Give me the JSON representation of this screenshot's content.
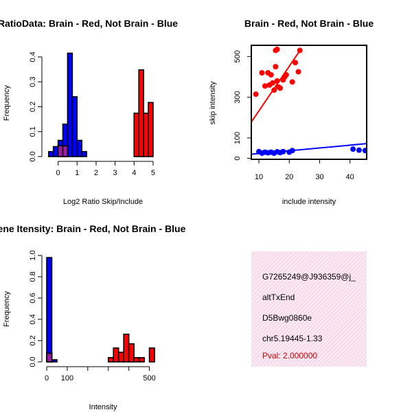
{
  "colors": {
    "brain": "#ff0000",
    "not_brain": "#0000ff",
    "overlap": "#9b1fa0",
    "panel": "#f7dcec"
  },
  "chart_data": [
    {
      "id": "ratio_hist",
      "type": "bar",
      "title": "RatioData: Brain - Red, Not Brain - Blue",
      "xlabel": "Log2 Ratio Skip/Include",
      "ylabel": "Frequency",
      "xlim": [
        -0.6,
        5.4
      ],
      "ylim": [
        0,
        0.43
      ],
      "xticks": [
        0,
        1,
        2,
        3,
        4,
        5
      ],
      "yticks": [
        0.0,
        0.1,
        0.2,
        0.3,
        0.4
      ],
      "series": [
        {
          "name": "Not Brain",
          "color": "blue",
          "bin_width": 0.25,
          "bins": [
            [
              -0.5,
              0.02
            ],
            [
              -0.25,
              0.04
            ],
            [
              0.0,
              0.065
            ],
            [
              0.25,
              0.13
            ],
            [
              0.5,
              0.415
            ],
            [
              0.75,
              0.24
            ],
            [
              1.0,
              0.065
            ],
            [
              1.25,
              0.02
            ]
          ]
        },
        {
          "name": "Brain",
          "color": "red",
          "bin_width": 0.25,
          "bins": [
            [
              0.0,
              0.043
            ],
            [
              0.25,
              0.043
            ],
            [
              4.0,
              0.174
            ],
            [
              4.25,
              0.348
            ],
            [
              4.5,
              0.174
            ],
            [
              4.75,
              0.217
            ]
          ]
        }
      ]
    },
    {
      "id": "scatter",
      "type": "scatter",
      "title": "Brain - Red, Not Brain - Blue",
      "xlabel": "include intensity",
      "ylabel": "skip intensity",
      "xlim": [
        7.5,
        45.5
      ],
      "ylim": [
        -5,
        555
      ],
      "xticks": [
        10,
        20,
        30,
        40
      ],
      "yticks": [
        0,
        100,
        300,
        500
      ],
      "series": [
        {
          "name": "Brain",
          "color": "red",
          "points": [
            [
              9,
              315
            ],
            [
              11,
              420
            ],
            [
              12,
              355
            ],
            [
              13,
              420
            ],
            [
              13.5,
              360
            ],
            [
              14,
              410
            ],
            [
              14.5,
              370
            ],
            [
              15,
              335
            ],
            [
              15.5,
              530
            ],
            [
              16,
              535
            ],
            [
              15.5,
              450
            ],
            [
              16,
              380
            ],
            [
              16.5,
              350
            ],
            [
              17,
              345
            ],
            [
              18,
              385
            ],
            [
              18.5,
              400
            ],
            [
              19,
              410
            ],
            [
              21,
              375
            ],
            [
              22,
              470
            ],
            [
              23,
              425
            ],
            [
              23.5,
              530
            ]
          ],
          "fit": [
            [
              7.5,
              178
            ],
            [
              24,
              540
            ]
          ]
        },
        {
          "name": "Not Brain",
          "color": "blue",
          "points": [
            [
              10,
              33
            ],
            [
              11,
              25
            ],
            [
              12,
              30
            ],
            [
              13,
              27
            ],
            [
              14,
              30
            ],
            [
              15,
              25
            ],
            [
              16,
              32
            ],
            [
              17,
              28
            ],
            [
              18,
              33
            ],
            [
              20,
              30
            ],
            [
              21,
              38
            ],
            [
              41,
              45
            ],
            [
              43,
              40
            ],
            [
              45,
              38
            ]
          ],
          "fit": [
            [
              7.5,
              20
            ],
            [
              45.5,
              72
            ]
          ]
        }
      ]
    },
    {
      "id": "intensity_hist",
      "type": "bar",
      "title": "Gene Itensity: Brain - Red, Not Brain - Blue",
      "xlabel": "Intensity",
      "ylabel": "Frequency",
      "xlim": [
        0,
        555
      ],
      "ylim": [
        0,
        1.0
      ],
      "xticks": [
        0,
        100,
        200,
        300,
        400,
        500
      ],
      "xticklabels": [
        "0",
        "100",
        "",
        "",
        "",
        "500"
      ],
      "yticks": [
        0.0,
        0.2,
        0.4,
        0.6,
        0.8,
        1.0
      ],
      "series": [
        {
          "name": "Not Brain",
          "color": "blue",
          "bin_width": 25,
          "bins": [
            [
              0,
              0.98
            ],
            [
              25,
              0.02
            ]
          ]
        },
        {
          "name": "Brain",
          "color": "red",
          "bin_width": 25,
          "bins": [
            [
              0,
              0.08
            ],
            [
              300,
              0.04
            ],
            [
              325,
              0.13
            ],
            [
              350,
              0.09
            ],
            [
              375,
              0.26
            ],
            [
              400,
              0.17
            ],
            [
              425,
              0.04
            ],
            [
              450,
              0.04
            ],
            [
              500,
              0.13
            ]
          ]
        }
      ]
    }
  ],
  "info_panel": {
    "event_id": "G7265249@J936359@j_",
    "event_type": "altTxEnd",
    "probe_id": "D5Bwg0860e",
    "location": "chr5.19445-1.33",
    "pval": "Pval: 2.000000"
  }
}
